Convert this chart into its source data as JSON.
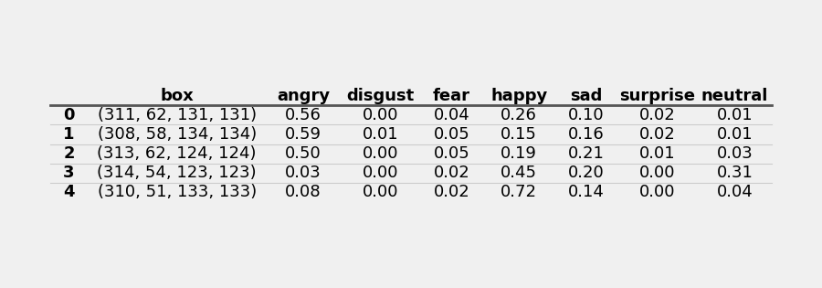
{
  "columns": [
    "",
    "box",
    "angry",
    "disgust",
    "fear",
    "happy",
    "sad",
    "surprise",
    "neutral"
  ],
  "index": [
    "0",
    "1",
    "2",
    "3",
    "4"
  ],
  "rows": [
    [
      "(311, 62, 131, 131)",
      "0.56",
      "0.00",
      "0.04",
      "0.26",
      "0.10",
      "0.02",
      "0.01"
    ],
    [
      "(308, 58, 134, 134)",
      "0.59",
      "0.01",
      "0.05",
      "0.15",
      "0.16",
      "0.02",
      "0.01"
    ],
    [
      "(313, 62, 124, 124)",
      "0.50",
      "0.00",
      "0.05",
      "0.19",
      "0.21",
      "0.01",
      "0.03"
    ],
    [
      "(314, 54, 123, 123)",
      "0.03",
      "0.00",
      "0.02",
      "0.45",
      "0.20",
      "0.00",
      "0.31"
    ],
    [
      "(310, 51, 133, 133)",
      "0.08",
      "0.00",
      "0.02",
      "0.72",
      "0.14",
      "0.00",
      "0.04"
    ]
  ],
  "header_fontsize": 13,
  "cell_fontsize": 13,
  "index_fontsize": 13,
  "bg_color": "#f0f0f0",
  "header_line_color": "#555555",
  "row_separator_color": "#cccccc"
}
